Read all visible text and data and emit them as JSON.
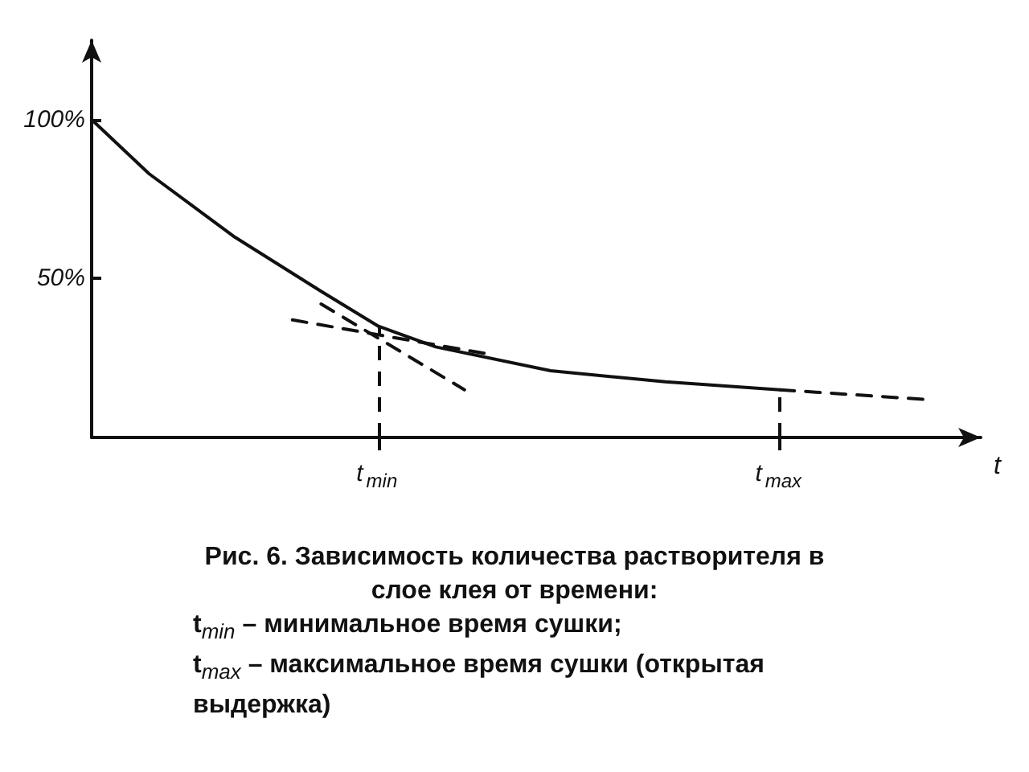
{
  "chart_data": {
    "type": "line",
    "title": "Рис. 6. Зависимость количества растворителя в слое клея от времени:",
    "annotations": [
      "t$_{min}$ – минимальное время сушки;",
      "t$_{max}$ – максимальное время сушки (открытая выдержка)"
    ],
    "xlabel": "t",
    "marker": "none",
    "ylim": [
      0,
      125
    ],
    "categories": [
      null,
      null,
      null,
      null,
      null,
      null,
      null,
      null,
      null,
      null,
      "t$_{min}$",
      null,
      null,
      null,
      null,
      null,
      null,
      null,
      null,
      null,
      null,
      null,
      null,
      null,
      "t$_{max}$",
      null,
      null,
      null,
      null,
      null,
      null,
      null
    ],
    "yticks": [
      {
        "value": 50,
        "label": "50%"
      },
      {
        "value": 100,
        "label": "100%"
      }
    ],
    "ref_lines": [
      {
        "axis": "x",
        "value": "t$_{min}$",
        "line_style": "dashed",
        "color": "#111111"
      },
      {
        "axis": "x",
        "value": "t$_{max}$",
        "line_style": "dashed",
        "color": "#111111"
      }
    ],
    "series": [
      {
        "color": "#111111",
        "line_style": "solid",
        "values": [
          100,
          null,
          83,
          null,
          null,
          63,
          null,
          null,
          46,
          null,
          35,
          null,
          28.5,
          null,
          null,
          null,
          21,
          null,
          null,
          null,
          17.5,
          null,
          null,
          null,
          15,
          null,
          null,
          null,
          null,
          null,
          null,
          null
        ]
      },
      {
        "color": "#111111",
        "line_style": "dashed",
        "values": [
          null,
          null,
          null,
          null,
          null,
          null,
          null,
          null,
          null,
          null,
          null,
          null,
          null,
          null,
          null,
          null,
          null,
          null,
          null,
          null,
          null,
          null,
          null,
          null,
          15,
          null,
          null,
          null,
          null,
          12,
          null,
          null
        ]
      },
      {
        "color": "#111111",
        "line_style": "dashed",
        "values": [
          null,
          null,
          null,
          null,
          null,
          null,
          null,
          37,
          null,
          null,
          null,
          null,
          null,
          null,
          26,
          null,
          null,
          null,
          null,
          null,
          null,
          null,
          null,
          null,
          null,
          null,
          null,
          null,
          null,
          null,
          null,
          null
        ]
      },
      {
        "color": "#111111",
        "line_style": "dashed",
        "values": [
          null,
          null,
          null,
          null,
          null,
          null,
          null,
          null,
          42,
          null,
          null,
          null,
          null,
          15,
          null,
          null,
          null,
          null,
          null,
          null,
          null,
          null,
          null,
          null,
          null,
          null,
          null,
          null,
          null,
          null,
          null,
          null
        ]
      }
    ]
  }
}
